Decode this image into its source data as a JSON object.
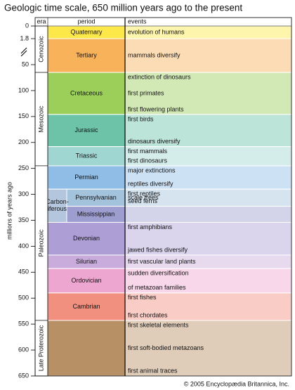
{
  "title": "Geologic time scale, 650 million years ago to the present",
  "axis_label": "millions of years ago",
  "axis_ticks": [
    0,
    1.8,
    50,
    100,
    150,
    200,
    250,
    300,
    350,
    400,
    450,
    500,
    550,
    600,
    650
  ],
  "headers": {
    "era": "era",
    "period": "period",
    "events": "events"
  },
  "eras": [
    {
      "name": "Cenozoic",
      "start": 0,
      "end": 65
    },
    {
      "name": "Mesozoic",
      "start": 65,
      "end": 245
    },
    {
      "name": "Paleozoic",
      "start": 245,
      "end": 543
    },
    {
      "name": "Late Proterozoic",
      "start": 543,
      "end": 650
    }
  ],
  "carboniferous": {
    "lines": [
      "Carbon-",
      "iferous"
    ],
    "start": 290,
    "end": 354
  },
  "periods": [
    {
      "name": "Quaternary",
      "start": 0,
      "end": 1.8,
      "color": "#fde84a",
      "events": [
        "evolution of humans"
      ]
    },
    {
      "name": "Tertiary",
      "start": 1.8,
      "end": 65,
      "color": "#f8b25a",
      "events": [
        "mammals diversify"
      ]
    },
    {
      "name": "Cretaceous",
      "start": 65,
      "end": 146,
      "color": "#9ccf5a",
      "events": [
        "extinction of dinosaurs",
        "first primates",
        "first flowering plants"
      ]
    },
    {
      "name": "Jurassic",
      "start": 146,
      "end": 208,
      "color": "#6cc3a8",
      "events": [
        "first birds",
        "dinosaurs diversify"
      ]
    },
    {
      "name": "Triassic",
      "start": 208,
      "end": 245,
      "color": "#9fd6d2",
      "events": [
        "first mammals",
        "first dinosaurs"
      ]
    },
    {
      "name": "Permian",
      "start": 245,
      "end": 290,
      "color": "#8fbde6",
      "events": [
        "major extinctions",
        "reptiles diversify"
      ]
    },
    {
      "name": "Pennsylvanian",
      "start": 290,
      "end": 323,
      "color": "#a3c3dd",
      "events": [
        "first reptiles",
        "scale trees",
        "seed ferns"
      ]
    },
    {
      "name": "Mississippian",
      "start": 323,
      "end": 354,
      "color": "#9d9dd0",
      "events": []
    },
    {
      "name": "Devonian",
      "start": 354,
      "end": 417,
      "color": "#ad9fd6",
      "events": [
        "first amphibians",
        "jawed fishes diversify"
      ]
    },
    {
      "name": "Silurian",
      "start": 417,
      "end": 443,
      "color": "#c9acdc",
      "events": [
        "first vascular land plants"
      ]
    },
    {
      "name": "Ordovician",
      "start": 443,
      "end": 490,
      "color": "#eda6cf",
      "events": [
        "sudden diversification",
        " of metazoan families"
      ]
    },
    {
      "name": "Cambrian",
      "start": 490,
      "end": 543,
      "color": "#f29080",
      "events": [
        "first fishes",
        "first chordates"
      ]
    },
    {
      "name": "",
      "start": 543,
      "end": 650,
      "color": "#b89066",
      "events": [
        "first skeletal elements",
        "first soft-bodied metazoans",
        "first animal traces"
      ]
    }
  ],
  "copyright": "© 2005 Encyclopædia Britannica, Inc."
}
